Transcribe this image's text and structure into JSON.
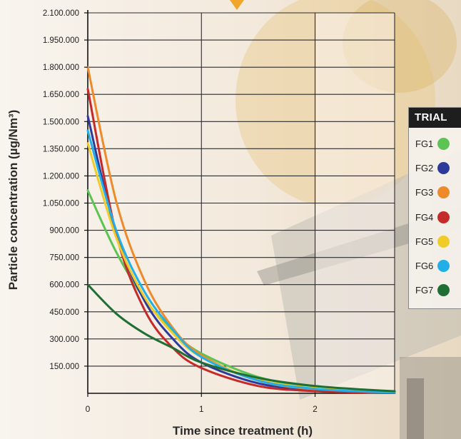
{
  "chart_data": {
    "type": "line",
    "xlabel": "Time since treatment (h)",
    "ylabel": "Particle concentration (µg/Nm³)",
    "xlim": [
      0,
      2.7
    ],
    "ylim": [
      0,
      2100000
    ],
    "x_ticks": [
      0,
      1,
      2
    ],
    "x_tick_labels": [
      "0",
      "1",
      "2"
    ],
    "y_tick_labels": [
      "150.000",
      "300.000",
      "450.000",
      "600.000",
      "750.000",
      "900.000",
      "1.050.000",
      "1.200.000",
      "1.350.000",
      "1.500.000",
      "1.650.000",
      "1.800.000",
      "1.950.000",
      "2.100.000"
    ],
    "grid": true,
    "legend_title": "TRIAL",
    "legend_position": "right",
    "series": [
      {
        "name": "FG1",
        "color": "#5cc452",
        "x": [
          0,
          0.25,
          0.5,
          0.75,
          1.0,
          1.5,
          2.0,
          2.5,
          2.7
        ],
        "y": [
          1120000,
          780000,
          520000,
          340000,
          220000,
          90000,
          35000,
          15000,
          10000
        ]
      },
      {
        "name": "FG2",
        "color": "#2e3a9a",
        "x": [
          0,
          0.25,
          0.5,
          0.75,
          1.0,
          1.5,
          2.0,
          2.5,
          2.7
        ],
        "y": [
          1530000,
          880000,
          510000,
          300000,
          170000,
          55000,
          18000,
          5000,
          3000
        ]
      },
      {
        "name": "FG3",
        "color": "#ee8a2a",
        "x": [
          0,
          0.25,
          0.5,
          0.75,
          1.0,
          1.5,
          2.0,
          2.5,
          2.7
        ],
        "y": [
          1800000,
          1060000,
          620000,
          360000,
          210000,
          70000,
          22000,
          8000,
          5000
        ]
      },
      {
        "name": "FG4",
        "color": "#c42a2a",
        "x": [
          0,
          0.25,
          0.5,
          0.75,
          1.0,
          1.5,
          2.0,
          2.5,
          2.7
        ],
        "y": [
          1680000,
          880000,
          460000,
          250000,
          140000,
          40000,
          12000,
          4000,
          2000
        ]
      },
      {
        "name": "FG5",
        "color": "#f0cc2a",
        "x": [
          0,
          0.25,
          0.5,
          0.75,
          1.0,
          1.5,
          2.0,
          2.5,
          2.7
        ],
        "y": [
          1380000,
          860000,
          530000,
          330000,
          200000,
          75000,
          28000,
          10000,
          6000
        ]
      },
      {
        "name": "FG6",
        "color": "#22aee6",
        "x": [
          0,
          0.25,
          0.5,
          0.75,
          1.0,
          1.5,
          2.0,
          2.5,
          2.7
        ],
        "y": [
          1450000,
          900000,
          560000,
          350000,
          200000,
          70000,
          25000,
          8000,
          5000
        ]
      },
      {
        "name": "FG7",
        "color": "#1f6e34",
        "x": [
          0,
          0.25,
          0.5,
          0.75,
          1.0,
          1.5,
          2.0,
          2.5,
          2.7
        ],
        "y": [
          600000,
          440000,
          330000,
          250000,
          170000,
          85000,
          40000,
          18000,
          12000
        ]
      }
    ]
  }
}
